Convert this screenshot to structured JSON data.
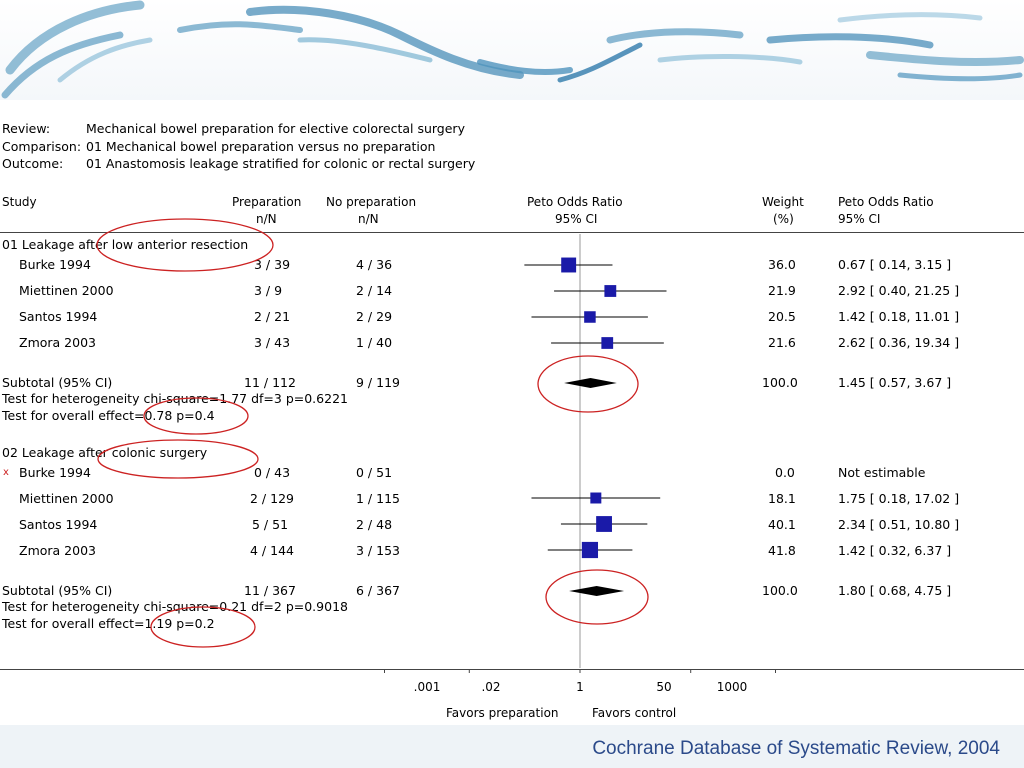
{
  "meta": {
    "review_label": "Review:",
    "review": "Mechanical bowel preparation for elective colorectal surgery",
    "comparison_label": "Comparison:",
    "comparison": "01 Mechanical bowel preparation versus no preparation",
    "outcome_label": "Outcome:",
    "outcome": "01 Anastomosis leakage stratified for colonic or rectal surgery"
  },
  "headers": {
    "study": "Study",
    "prep": "Preparation",
    "prep_sub": "n/N",
    "noprep": "No preparation",
    "noprep_sub": "n/N",
    "peto": "Peto Odds Ratio",
    "peto_sub": "95% CI",
    "weight": "Weight",
    "weight_sub": "(%)",
    "peto2": "Peto Odds Ratio",
    "peto2_sub": "95% CI"
  },
  "groups": [
    {
      "title": "01 Leakage after low anterior resection",
      "studies": [
        {
          "name": "Burke 1994",
          "prep": "3 / 39",
          "noprep": "4 / 36",
          "weight": "36.0",
          "ci_text": "0.67 [ 0.14, 3.15 ]"
        },
        {
          "name": "Miettinen 2000",
          "prep": "3 / 9",
          "noprep": "2 / 14",
          "weight": "21.9",
          "ci_text": "2.92 [ 0.40, 21.25 ]"
        },
        {
          "name": "Santos 1994",
          "prep": "2 / 21",
          "noprep": "2 / 29",
          "weight": "20.5",
          "ci_text": "1.42 [ 0.18, 11.01 ]"
        },
        {
          "name": "Zmora 2003",
          "prep": "3 / 43",
          "noprep": "1 / 40",
          "weight": "21.6",
          "ci_text": "2.62 [ 0.36, 19.34 ]"
        }
      ],
      "subtotal": {
        "label": "Subtotal (95% CI)",
        "prep": "11 / 112",
        "noprep": "9 / 119",
        "weight": "100.0",
        "ci_text": "1.45 [ 0.57, 3.67 ]"
      },
      "heterogeneity": "Test for heterogeneity chi-square=1.77 df=3 p=0.6221",
      "overall": "Test for overall effect=0.78 p=0.4"
    },
    {
      "title": "02 Leakage after colonic surgery",
      "studies": [
        {
          "name": "Burke 1994",
          "marker": "x",
          "prep": "0 / 43",
          "noprep": "0 / 51",
          "weight": "0.0",
          "ci_text": "Not estimable"
        },
        {
          "name": "Miettinen 2000",
          "prep": "2 / 129",
          "noprep": "1 / 115",
          "weight": "18.1",
          "ci_text": "1.75 [ 0.18, 17.02 ]"
        },
        {
          "name": "Santos 1994",
          "prep": "5 / 51",
          "noprep": "2 / 48",
          "weight": "40.1",
          "ci_text": "2.34 [ 0.51, 10.80 ]"
        },
        {
          "name": "Zmora 2003",
          "prep": "4 / 144",
          "noprep": "3 / 153",
          "weight": "41.8",
          "ci_text": "1.42 [ 0.32, 6.37 ]"
        }
      ],
      "subtotal": {
        "label": "Subtotal (95% CI)",
        "prep": "11 / 367",
        "noprep": "6 / 367",
        "weight": "100.0",
        "ci_text": "1.80 [ 0.68, 4.75 ]"
      },
      "heterogeneity": "Test for heterogeneity chi-square=0.21 df=2 p=0.9018",
      "overall": "Test for overall effect=1.19 p=0.2"
    }
  ],
  "axis": {
    "ticks": [
      ".001",
      ".02",
      "1",
      "50",
      "1000"
    ],
    "favors_left": "Favors preparation",
    "favors_right": "Favors control"
  },
  "citation": "Cochrane Database of Systematic Review, 2004",
  "colors": {
    "square": "#1a1aa8",
    "diamond": "#000000",
    "annotation": "#cc2222",
    "citation": "#2b4a8a",
    "marker_x": "#cc2222"
  },
  "chart_data": {
    "type": "forest",
    "scale": "log",
    "xlim": [
      0.001,
      1000
    ],
    "x_ticks": [
      0.001,
      0.02,
      1,
      50,
      1000
    ],
    "reference_line": 1,
    "series": [
      {
        "name": "01 Leakage after low anterior resection",
        "studies": [
          {
            "study": "Burke 1994",
            "or": 0.67,
            "ci": [
              0.14,
              3.15
            ],
            "weight": 36.0
          },
          {
            "study": "Miettinen 2000",
            "or": 2.92,
            "ci": [
              0.4,
              21.25
            ],
            "weight": 21.9
          },
          {
            "study": "Santos 1994",
            "or": 1.42,
            "ci": [
              0.18,
              11.01
            ],
            "weight": 20.5
          },
          {
            "study": "Zmora 2003",
            "or": 2.62,
            "ci": [
              0.36,
              19.34
            ],
            "weight": 21.6
          }
        ],
        "subtotal": {
          "or": 1.45,
          "ci": [
            0.57,
            3.67
          ]
        }
      },
      {
        "name": "02 Leakage after colonic surgery",
        "studies": [
          {
            "study": "Burke 1994",
            "or": null,
            "ci": null,
            "weight": 0.0
          },
          {
            "study": "Miettinen 2000",
            "or": 1.75,
            "ci": [
              0.18,
              17.02
            ],
            "weight": 18.1
          },
          {
            "study": "Santos 1994",
            "or": 2.34,
            "ci": [
              0.51,
              10.8
            ],
            "weight": 40.1
          },
          {
            "study": "Zmora 2003",
            "or": 1.42,
            "ci": [
              0.32,
              6.37
            ],
            "weight": 41.8
          }
        ],
        "subtotal": {
          "or": 1.8,
          "ci": [
            0.68,
            4.75
          ]
        }
      }
    ]
  }
}
